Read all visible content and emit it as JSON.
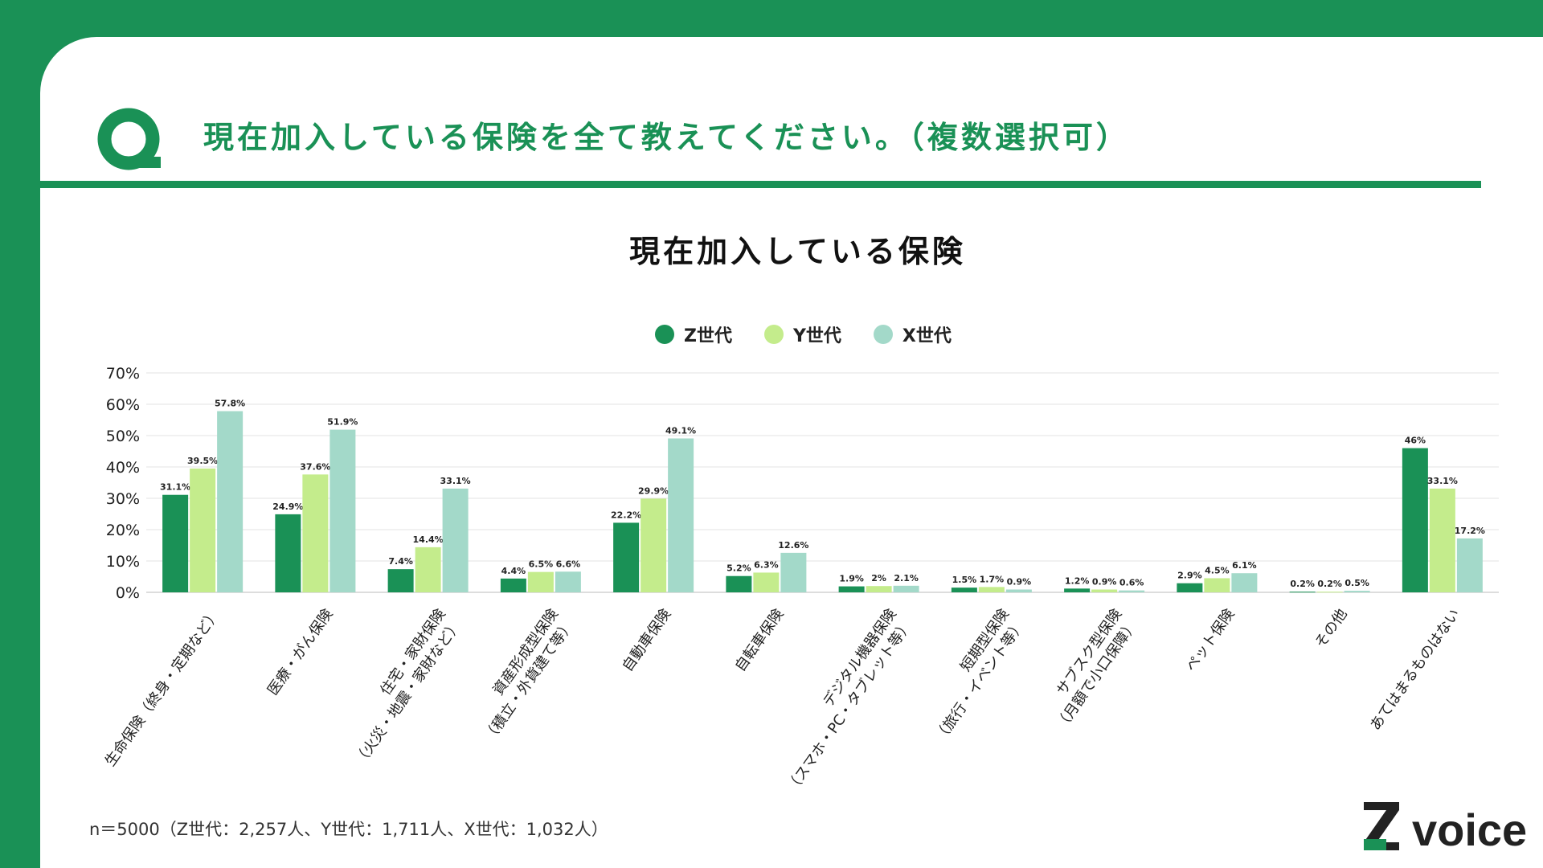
{
  "question": "現在加入している保険を全て教えてください。（複数選択可）",
  "colors": {
    "brand": "#1a9156",
    "z": "#1a9156",
    "y": "#c4ec8c",
    "x": "#a3d9c9"
  },
  "chart_data": {
    "type": "bar",
    "title": "現在加入している保険",
    "ylim": [
      0,
      70
    ],
    "yticks": [
      "0%",
      "10%",
      "20%",
      "30%",
      "40%",
      "50%",
      "60%",
      "70%"
    ],
    "grid": true,
    "legend_position": "top-center",
    "categories": [
      "生命保険（終身・定期など）",
      "医療・がん保険",
      "住宅・家財保険\n（火災・地震・家財など）",
      "資産形成型保険\n（積立・外貨建て等）",
      "自動車保険",
      "自転車保険",
      "デジタル機器保険\n（スマホ・PC・タブレット等）",
      "短期型保険\n（旅行・イベント等）",
      "サブスク型保険\n（月額で小口保障）",
      "ペット保険",
      "その他",
      "あてはまるものはない"
    ],
    "series": [
      {
        "name": "Z世代",
        "values": [
          31.1,
          24.9,
          7.4,
          4.4,
          22.2,
          5.2,
          1.9,
          1.5,
          1.2,
          2.9,
          0.2,
          46
        ],
        "labels": [
          "31.1%",
          "24.9%",
          "7.4%",
          "4.4%",
          "22.2%",
          "5.2%",
          "1.9%",
          "1.5%",
          "1.2%",
          "2.9%",
          "0.2%",
          "46%"
        ]
      },
      {
        "name": "Y世代",
        "values": [
          39.5,
          37.6,
          14.4,
          6.5,
          29.9,
          6.3,
          2,
          1.7,
          0.9,
          4.5,
          0.2,
          33.1
        ],
        "labels": [
          "39.5%",
          "37.6%",
          "14.4%",
          "6.5%",
          "29.9%",
          "6.3%",
          "2%",
          "1.7%",
          "0.9%",
          "4.5%",
          "0.2%",
          "33.1%"
        ]
      },
      {
        "name": "X世代",
        "values": [
          57.8,
          51.9,
          33.1,
          6.6,
          49.1,
          12.6,
          2.1,
          0.9,
          0.6,
          6.1,
          0.5,
          17.2
        ],
        "labels": [
          "57.8%",
          "51.9%",
          "33.1%",
          "6.6%",
          "49.1%",
          "12.6%",
          "2.1%",
          "0.9%",
          "0.6%",
          "6.1%",
          "0.5%",
          "17.2%"
        ]
      }
    ]
  },
  "note": "n＝5000（Z世代：2,257人、Y世代：1,711人、X世代：1,032人）",
  "logo": {
    "text": "voice",
    "mark": "Z"
  }
}
